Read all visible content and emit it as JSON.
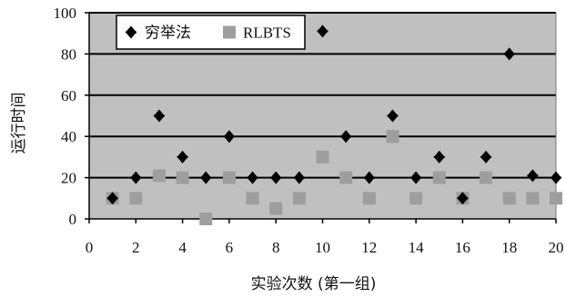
{
  "chart_data": {
    "type": "scatter",
    "xlabel": "实验次数 (第一组)",
    "ylabel": "运行时间",
    "xlim": [
      0,
      20
    ],
    "ylim": [
      0,
      100
    ],
    "xticks": [
      0,
      2,
      4,
      6,
      8,
      10,
      12,
      14,
      16,
      18,
      20
    ],
    "yticks": [
      0,
      20,
      40,
      60,
      80,
      100
    ],
    "grid": "horizontal",
    "legend_position": "top-left",
    "colors": {
      "plot_background": "#c0c0c0",
      "gridline": "#000000",
      "series_1": "#000000",
      "series_2": "#9e9e9e"
    },
    "series": [
      {
        "name": "穷举法",
        "marker": "diamond",
        "x": [
          1,
          2,
          3,
          4,
          5,
          6,
          7,
          8,
          9,
          10,
          11,
          12,
          13,
          14,
          15,
          16,
          17,
          18,
          19,
          20
        ],
        "y": [
          10,
          20,
          50,
          30,
          20,
          40,
          20,
          20,
          20,
          91,
          40,
          20,
          50,
          20,
          30,
          10,
          30,
          80,
          21,
          20
        ]
      },
      {
        "name": "RLBTS",
        "marker": "square",
        "x": [
          1,
          2,
          3,
          4,
          5,
          6,
          7,
          8,
          9,
          10,
          11,
          12,
          13,
          14,
          15,
          16,
          17,
          18,
          19,
          20
        ],
        "y": [
          10,
          10,
          21,
          20,
          0,
          20,
          10,
          5,
          10,
          30,
          20,
          10,
          40,
          10,
          20,
          10,
          20,
          10,
          10,
          10
        ]
      }
    ]
  }
}
